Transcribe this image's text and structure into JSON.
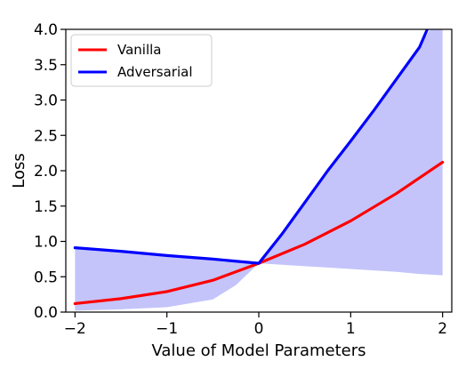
{
  "chart_data": {
    "type": "line",
    "xlabel": "Value of Model Parameters",
    "ylabel": "Loss",
    "xlim": [
      -2.1,
      2.1
    ],
    "ylim": [
      0.0,
      4.0
    ],
    "x_ticks": [
      -2,
      -1,
      0,
      1,
      2
    ],
    "x_tick_labels": [
      "−2",
      "−1",
      "0",
      "1",
      "2"
    ],
    "y_ticks": [
      0.0,
      0.5,
      1.0,
      1.5,
      2.0,
      2.5,
      3.0,
      3.5,
      4.0
    ],
    "y_tick_labels": [
      "0.0",
      "0.5",
      "1.0",
      "1.5",
      "2.0",
      "2.5",
      "3.0",
      "3.5",
      "4.0"
    ],
    "grid": false,
    "legend_position": "top-left",
    "fill_color": "#c4c4fb",
    "series": [
      {
        "name": "Vanilla",
        "color": "#ff0000",
        "x": [
          -2.0,
          -1.5,
          -1.0,
          -0.5,
          0.0,
          0.5,
          1.0,
          1.5,
          2.0
        ],
        "y": [
          0.12,
          0.19,
          0.29,
          0.45,
          0.69,
          0.96,
          1.29,
          1.68,
          2.12
        ]
      },
      {
        "name": "Adversarial",
        "color": "#0000ff",
        "x": [
          -2.0,
          -1.5,
          -1.0,
          -0.5,
          0.0,
          0.25,
          0.5,
          0.75,
          1.0,
          1.25,
          1.5,
          1.75,
          1.85
        ],
        "y": [
          0.91,
          0.86,
          0.8,
          0.75,
          0.69,
          1.1,
          1.55,
          2.0,
          2.42,
          2.85,
          3.3,
          3.75,
          4.05
        ]
      }
    ],
    "shaded_region": {
      "x": [
        -2.0,
        -1.5,
        -1.0,
        -0.5,
        -0.25,
        0.0,
        0.25,
        0.5,
        0.75,
        1.0,
        1.25,
        1.5,
        1.75,
        2.0
      ],
      "lower": [
        0.02,
        0.04,
        0.07,
        0.18,
        0.38,
        0.69,
        0.67,
        0.65,
        0.63,
        0.61,
        0.59,
        0.57,
        0.54,
        0.52
      ],
      "upper": [
        0.91,
        0.86,
        0.8,
        0.75,
        0.72,
        0.69,
        1.1,
        1.55,
        2.0,
        2.42,
        2.85,
        3.3,
        3.75,
        4.3
      ]
    }
  }
}
